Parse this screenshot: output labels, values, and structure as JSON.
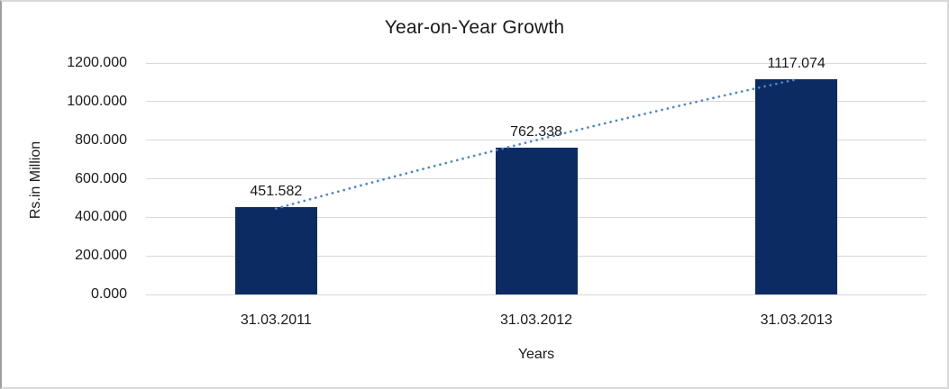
{
  "chart_data": {
    "type": "bar",
    "title": "Year-on-Year Growth",
    "xlabel": "Years",
    "ylabel": "Rs.in Million",
    "categories": [
      "31.03.2011",
      "31.03.2012",
      "31.03.2013"
    ],
    "values": [
      451.582,
      762.338,
      1117.074
    ],
    "value_labels": [
      "451.582",
      "762.338",
      "1117.074"
    ],
    "ylim": [
      0,
      1200
    ],
    "ytick_interval": 200,
    "ytick_labels": [
      "0.000",
      "200.000",
      "400.000",
      "600.000",
      "800.000",
      "1000.000",
      "1200.000"
    ],
    "grid": true,
    "legend_position": "none",
    "bar_color": "#0d2b63",
    "gridline_color": "#d9d9d9",
    "text_color": "#1a1a1a",
    "trendline": {
      "type": "linear",
      "style": "dotted",
      "color": "#4f87c5",
      "fitted_values": [
        445,
        800,
        1115
      ]
    }
  }
}
